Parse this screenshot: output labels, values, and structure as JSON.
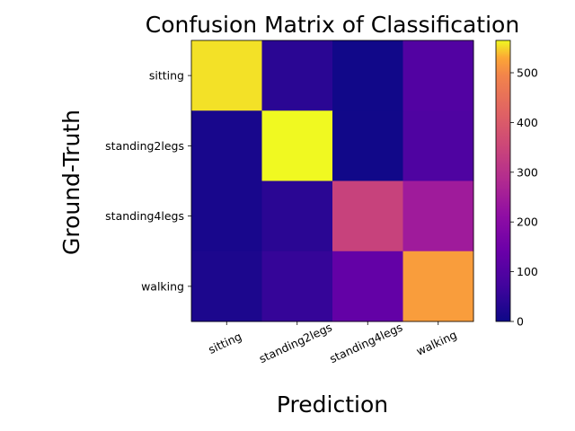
{
  "chart_data": {
    "type": "heatmap",
    "title": "Confusion Matrix of Classification",
    "xlabel": "Prediction",
    "ylabel": "Ground-Truth",
    "x_categories": [
      "sitting",
      "standing2legs",
      "standing4legs",
      "walking"
    ],
    "y_categories": [
      "sitting",
      "standing2legs",
      "standing4legs",
      "walking"
    ],
    "values": [
      [
        555,
        40,
        5,
        100
      ],
      [
        15,
        565,
        5,
        95
      ],
      [
        15,
        40,
        340,
        245
      ],
      [
        20,
        55,
        130,
        520
      ]
    ],
    "colormap": "plasma",
    "colorbar": {
      "min": 0,
      "max": 565,
      "ticks": [
        0,
        100,
        200,
        300,
        400,
        500
      ]
    }
  }
}
